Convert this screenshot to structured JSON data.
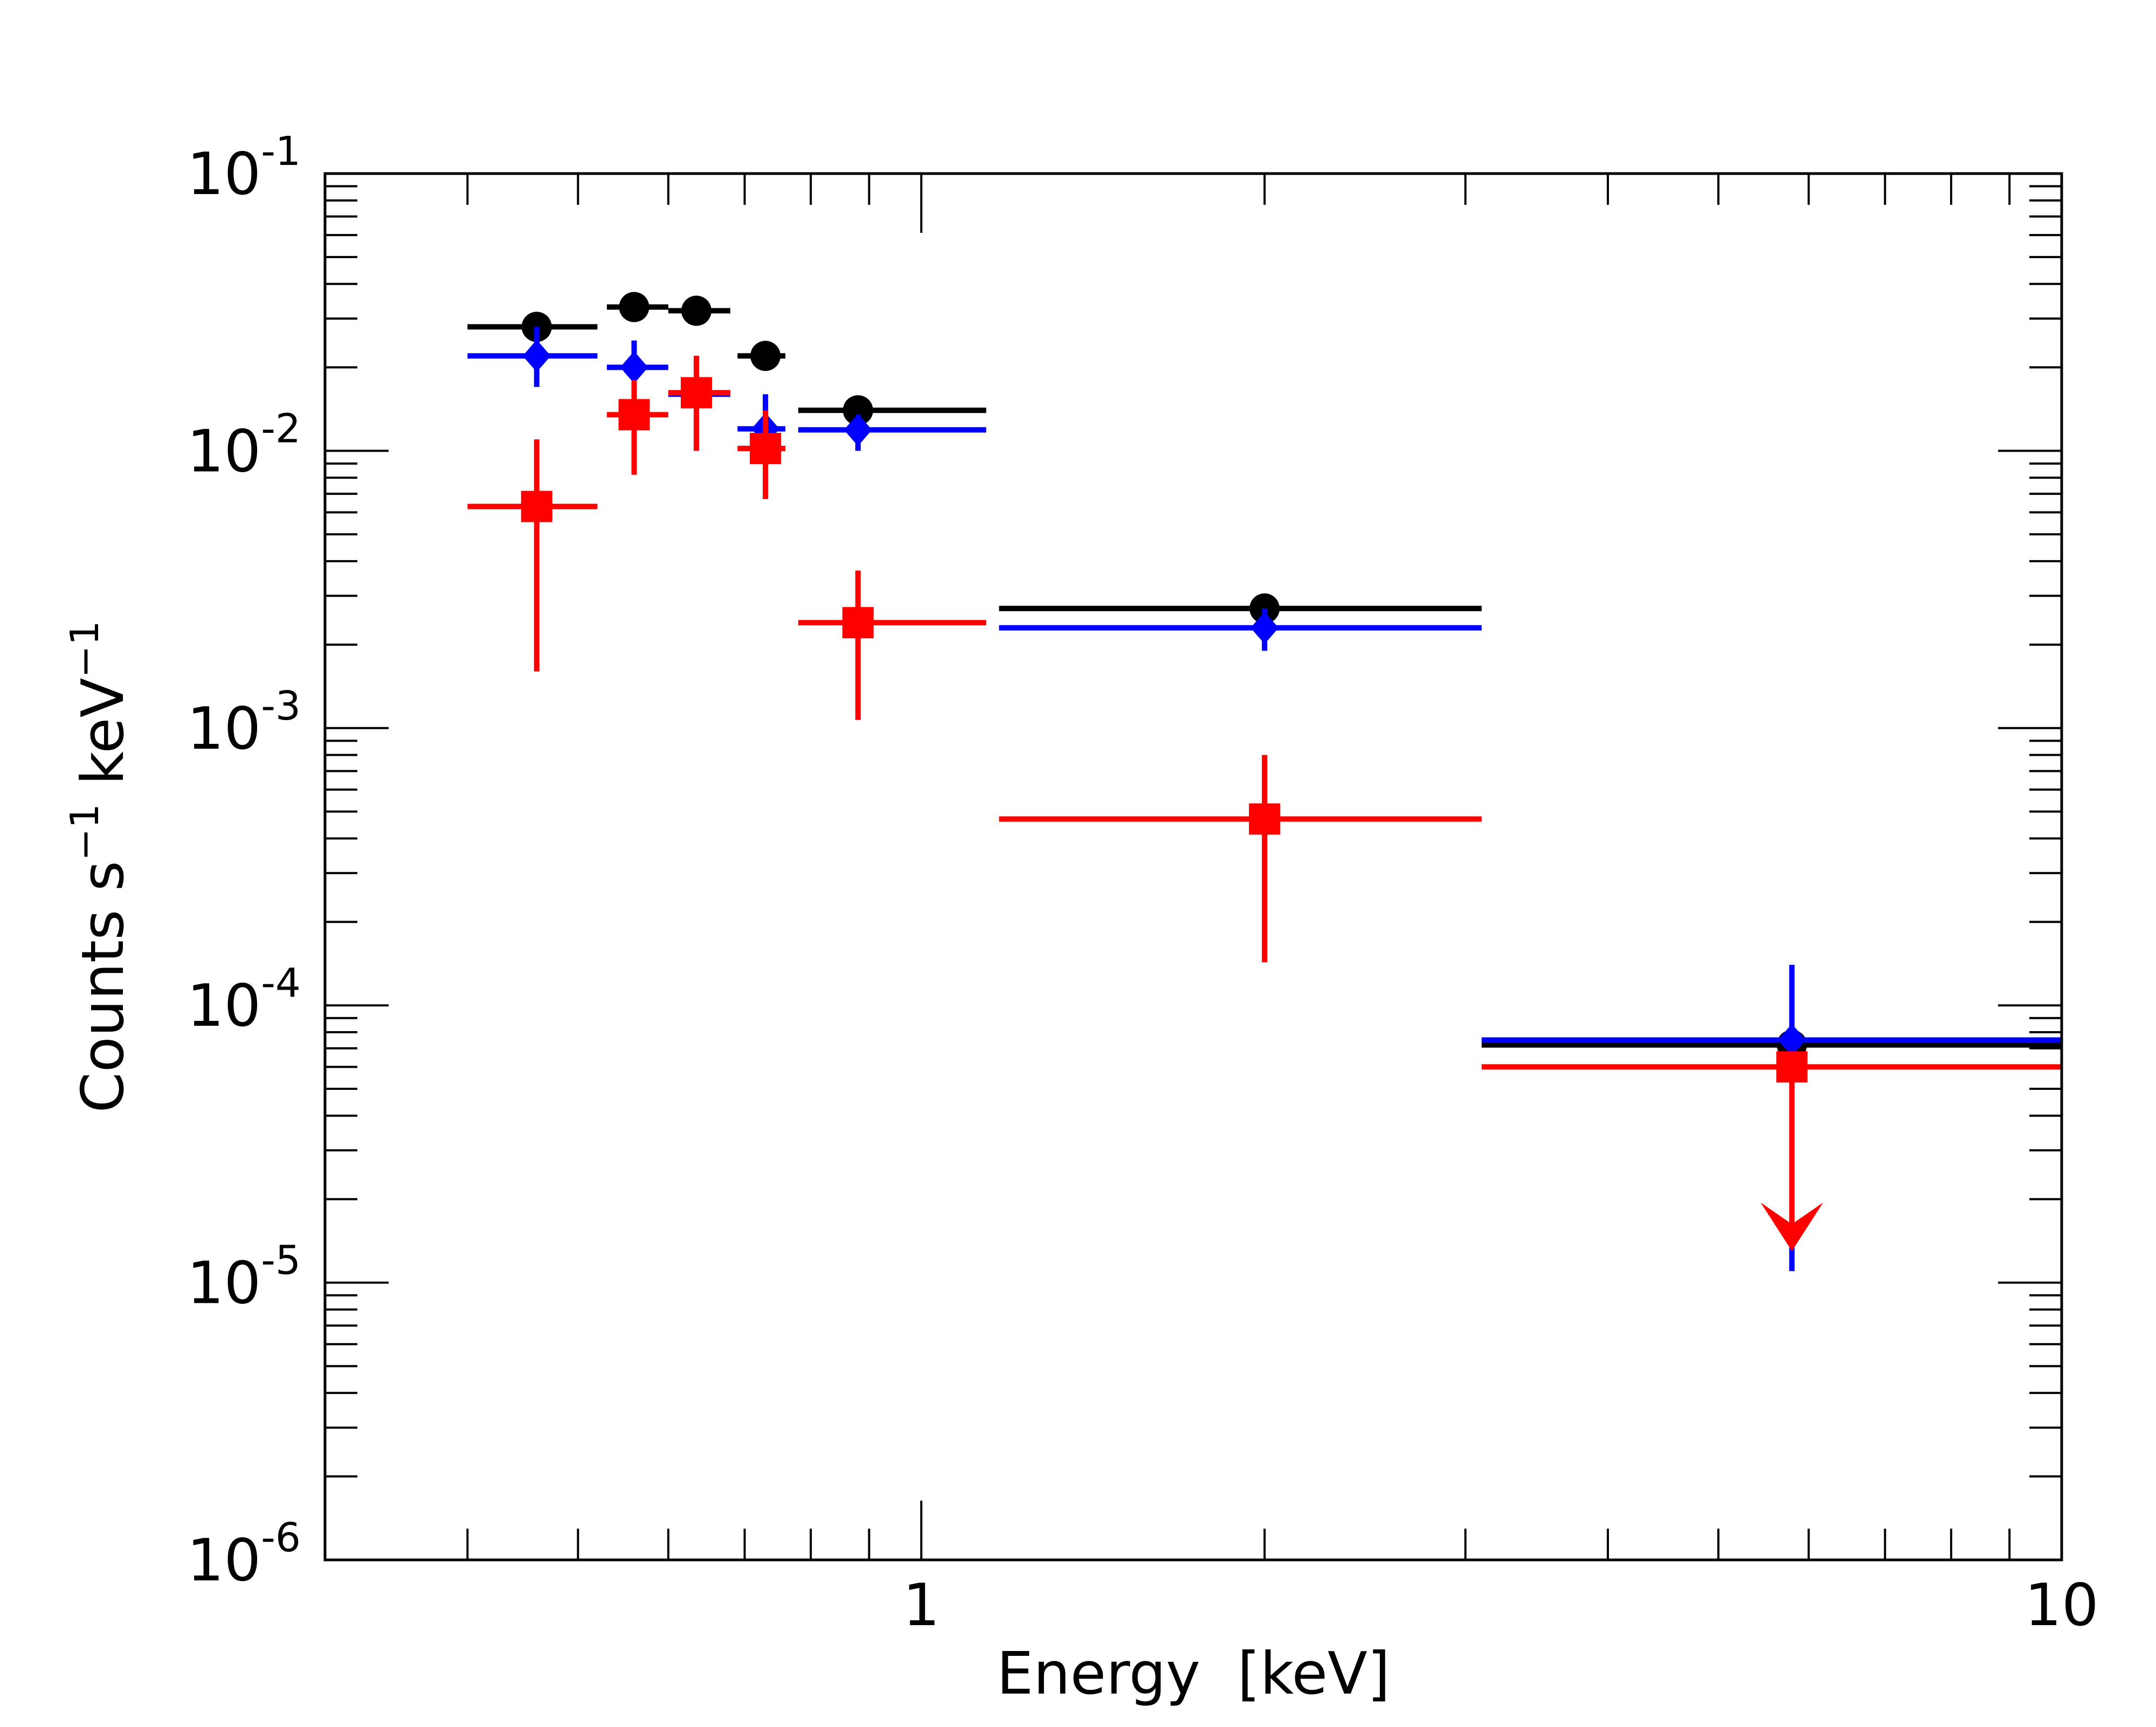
{
  "chart_data": {
    "type": "scatter",
    "title": "",
    "xlabel": "Energy  [keV]",
    "ylabel_parts": [
      "Counts s",
      "−1",
      " keV",
      "−1"
    ],
    "x_scale": "log",
    "y_scale": "log",
    "xlim": [
      0.3,
      10
    ],
    "ylim": [
      1e-06,
      0.1
    ],
    "grid": false,
    "legend": "none",
    "x_tick_labels": [
      {
        "value": 1,
        "label": "1"
      },
      {
        "value": 10,
        "label": "10"
      }
    ],
    "y_tick_labels": [
      {
        "value": 0.1,
        "base": "10",
        "exp": "-1"
      },
      {
        "value": 0.01,
        "base": "10",
        "exp": "-2"
      },
      {
        "value": 0.001,
        "base": "10",
        "exp": "-3"
      },
      {
        "value": 0.0001,
        "base": "10",
        "exp": "-4"
      },
      {
        "value": 1e-05,
        "base": "10",
        "exp": "-5"
      },
      {
        "value": 1e-06,
        "base": "10",
        "exp": "-6"
      }
    ],
    "series": [
      {
        "name": "black",
        "color": "#000000",
        "marker": "circle",
        "points": [
          {
            "x": 0.46,
            "xlo": 0.4,
            "xhi": 0.52,
            "y": 0.028,
            "ylo": 0.026,
            "yhi": 0.03
          },
          {
            "x": 0.56,
            "xlo": 0.53,
            "xhi": 0.6,
            "y": 0.033,
            "ylo": 0.03,
            "yhi": 0.036
          },
          {
            "x": 0.635,
            "xlo": 0.6,
            "xhi": 0.68,
            "y": 0.032,
            "ylo": 0.029,
            "yhi": 0.034
          },
          {
            "x": 0.73,
            "xlo": 0.69,
            "xhi": 0.76,
            "y": 0.022,
            "ylo": 0.02,
            "yhi": 0.024
          },
          {
            "x": 0.88,
            "xlo": 0.78,
            "xhi": 1.14,
            "y": 0.014,
            "ylo": 0.0135,
            "yhi": 0.0148
          },
          {
            "x": 2.0,
            "xlo": 1.17,
            "xhi": 3.1,
            "y": 0.0027,
            "ylo": 0.0025,
            "yhi": 0.0029
          },
          {
            "x": 5.8,
            "xlo": 3.1,
            "xhi": 10.0,
            "y": 7.2e-05,
            "ylo": 6.5e-05,
            "yhi": 7.8e-05
          }
        ]
      },
      {
        "name": "blue",
        "color": "#0000ff",
        "marker": "diamond",
        "points": [
          {
            "x": 0.46,
            "xlo": 0.4,
            "xhi": 0.52,
            "y": 0.022,
            "ylo": 0.017,
            "yhi": 0.028
          },
          {
            "x": 0.56,
            "xlo": 0.53,
            "xhi": 0.6,
            "y": 0.02,
            "ylo": 0.016,
            "yhi": 0.025
          },
          {
            "x": 0.635,
            "xlo": 0.6,
            "xhi": 0.68,
            "y": 0.016,
            "ylo": 0.01,
            "yhi": 0.022
          },
          {
            "x": 0.73,
            "xlo": 0.69,
            "xhi": 0.76,
            "y": 0.012,
            "ylo": 0.0095,
            "yhi": 0.016
          },
          {
            "x": 0.88,
            "xlo": 0.78,
            "xhi": 1.14,
            "y": 0.0119,
            "ylo": 0.01,
            "yhi": 0.0135
          },
          {
            "x": 2.0,
            "xlo": 1.17,
            "xhi": 3.1,
            "y": 0.0023,
            "ylo": 0.0019,
            "yhi": 0.0027
          },
          {
            "x": 5.8,
            "xlo": 3.1,
            "xhi": 10.0,
            "y": 7.5e-05,
            "ylo": 1.1e-05,
            "yhi": 0.00014
          }
        ]
      },
      {
        "name": "red",
        "color": "#ff0000",
        "marker": "square",
        "points": [
          {
            "x": 0.46,
            "xlo": 0.4,
            "xhi": 0.52,
            "y": 0.0063,
            "ylo": 0.0016,
            "yhi": 0.011
          },
          {
            "x": 0.56,
            "xlo": 0.53,
            "xhi": 0.6,
            "y": 0.0135,
            "ylo": 0.0082,
            "yhi": 0.018
          },
          {
            "x": 0.635,
            "xlo": 0.6,
            "xhi": 0.68,
            "y": 0.0162,
            "ylo": 0.01,
            "yhi": 0.022
          },
          {
            "x": 0.73,
            "xlo": 0.69,
            "xhi": 0.76,
            "y": 0.0102,
            "ylo": 0.0067,
            "yhi": 0.014
          },
          {
            "x": 0.88,
            "xlo": 0.78,
            "xhi": 1.14,
            "y": 0.0024,
            "ylo": 0.00107,
            "yhi": 0.0037
          },
          {
            "x": 2.0,
            "xlo": 1.17,
            "xhi": 3.1,
            "y": 0.00047,
            "ylo": 0.000143,
            "yhi": 0.0008
          },
          {
            "x": 5.8,
            "xlo": 3.1,
            "xhi": 10.0,
            "y": 6e-05,
            "ylo": 1.3e-05,
            "yhi": 6e-05,
            "upper_limit": true
          }
        ]
      }
    ]
  }
}
